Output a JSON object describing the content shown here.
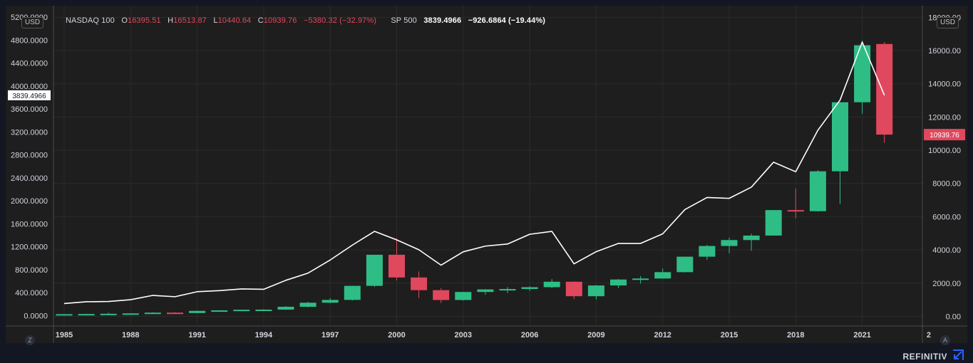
{
  "left_currency": "USD",
  "right_currency": "USD",
  "legend": {
    "symbol": "NASDAQ 100",
    "open_label": "O",
    "open": "16395.51",
    "high_label": "H",
    "high": "16513.87",
    "low_label": "L",
    "low": "10440.64",
    "close_label": "C",
    "close": "10939.76",
    "change": "−5380.32 (−32.97%)",
    "overlay_symbol": "SP 500",
    "overlay_value": "3839.4966",
    "overlay_change": "−926.6864 (−19.44%)"
  },
  "last_price_tag": "3839.4966",
  "close_price_tag": "10939.76",
  "corner_left": "Z",
  "corner_right": "A",
  "brand": "REFINITIV",
  "colors": {
    "up": "#2ebd85",
    "down": "#e0485d",
    "line": "#ffffff",
    "background": "#1e1e1e",
    "grid": "#2b2b2b",
    "text": "#d1d4dc"
  },
  "chart_data": {
    "type": "line",
    "title": "",
    "x_ticks": [
      "1985",
      "1988",
      "1991",
      "1994",
      "1997",
      "2000",
      "2003",
      "2006",
      "2009",
      "2012",
      "2015",
      "2018",
      "2021",
      "2"
    ],
    "left_axis": {
      "label": "SP 500",
      "ticks": [
        "0.0000",
        "400.0000",
        "800.0000",
        "1200.0000",
        "1600.0000",
        "2000.0000",
        "2400.0000",
        "2800.0000",
        "3200.0000",
        "3600.0000",
        "4000.0000",
        "4400.0000",
        "4800.0000",
        "5200.0000"
      ],
      "range": [
        -180,
        5400
      ]
    },
    "right_axis": {
      "label": "NASDAQ 100",
      "ticks": [
        "0.00",
        "2000.00",
        "4000.00",
        "6000.00",
        "8000.00",
        "10000.00",
        "12000.00",
        "14000.00",
        "16000.00",
        "18000.00"
      ],
      "range": [
        -580,
        18700
      ]
    },
    "grid": true,
    "series": [
      {
        "name": "NASDAQ 100",
        "type": "candlestick",
        "axis": "right",
        "candles": [
          {
            "year": 1985,
            "open": 100,
            "high": 140,
            "low": 90,
            "close": 132
          },
          {
            "year": 1986,
            "open": 132,
            "high": 160,
            "low": 120,
            "close": 141
          },
          {
            "year": 1987,
            "open": 141,
            "high": 220,
            "low": 100,
            "close": 156
          },
          {
            "year": 1988,
            "open": 156,
            "high": 190,
            "low": 140,
            "close": 177
          },
          {
            "year": 1989,
            "open": 177,
            "high": 240,
            "low": 170,
            "close": 223
          },
          {
            "year": 1990,
            "open": 223,
            "high": 250,
            "low": 170,
            "close": 200
          },
          {
            "year": 1991,
            "open": 200,
            "high": 340,
            "low": 190,
            "close": 330
          },
          {
            "year": 1992,
            "open": 330,
            "high": 370,
            "low": 300,
            "close": 361
          },
          {
            "year": 1993,
            "open": 361,
            "high": 400,
            "low": 340,
            "close": 398
          },
          {
            "year": 1994,
            "open": 398,
            "high": 430,
            "low": 360,
            "close": 404
          },
          {
            "year": 1995,
            "open": 404,
            "high": 620,
            "low": 390,
            "close": 576
          },
          {
            "year": 1996,
            "open": 576,
            "high": 870,
            "low": 540,
            "close": 821
          },
          {
            "year": 1997,
            "open": 821,
            "high": 1100,
            "low": 790,
            "close": 990
          },
          {
            "year": 1998,
            "open": 990,
            "high": 1850,
            "low": 950,
            "close": 1836
          },
          {
            "year": 1999,
            "open": 1836,
            "high": 3710,
            "low": 1770,
            "close": 3708
          },
          {
            "year": 2000,
            "open": 3708,
            "high": 4700,
            "low": 2170,
            "close": 2341
          },
          {
            "year": 2001,
            "open": 2341,
            "high": 2700,
            "low": 1100,
            "close": 1577
          },
          {
            "year": 2002,
            "open": 1577,
            "high": 1700,
            "low": 800,
            "close": 984
          },
          {
            "year": 2003,
            "open": 984,
            "high": 1480,
            "low": 950,
            "close": 1467
          },
          {
            "year": 2004,
            "open": 1467,
            "high": 1640,
            "low": 1300,
            "close": 1621
          },
          {
            "year": 2005,
            "open": 1621,
            "high": 1760,
            "low": 1400,
            "close": 1645
          },
          {
            "year": 2006,
            "open": 1645,
            "high": 1820,
            "low": 1530,
            "close": 1756
          },
          {
            "year": 2007,
            "open": 1756,
            "high": 2240,
            "low": 1700,
            "close": 2084
          },
          {
            "year": 2008,
            "open": 2084,
            "high": 2110,
            "low": 1040,
            "close": 1212
          },
          {
            "year": 2009,
            "open": 1212,
            "high": 1880,
            "low": 1020,
            "close": 1860
          },
          {
            "year": 2010,
            "open": 1860,
            "high": 2240,
            "low": 1700,
            "close": 2217
          },
          {
            "year": 2011,
            "open": 2217,
            "high": 2420,
            "low": 1970,
            "close": 2278
          },
          {
            "year": 2012,
            "open": 2278,
            "high": 2880,
            "low": 2260,
            "close": 2661
          },
          {
            "year": 2013,
            "open": 2661,
            "high": 3600,
            "low": 2640,
            "close": 3592
          },
          {
            "year": 2014,
            "open": 3592,
            "high": 4300,
            "low": 3400,
            "close": 4236
          },
          {
            "year": 2015,
            "open": 4236,
            "high": 4740,
            "low": 3790,
            "close": 4593
          },
          {
            "year": 2016,
            "open": 4593,
            "high": 4980,
            "low": 3950,
            "close": 4863
          },
          {
            "year": 2017,
            "open": 4863,
            "high": 6400,
            "low": 4860,
            "close": 6396
          },
          {
            "year": 2018,
            "open": 6396,
            "high": 7700,
            "low": 5900,
            "close": 6330
          },
          {
            "year": 2019,
            "open": 6330,
            "high": 8800,
            "low": 6300,
            "close": 8733
          },
          {
            "year": 2020,
            "open": 8733,
            "high": 12900,
            "low": 6770,
            "close": 12888
          },
          {
            "year": 2021,
            "open": 12888,
            "high": 16600,
            "low": 12200,
            "close": 16320
          },
          {
            "year": 2022,
            "open": 16395.51,
            "high": 16513.87,
            "low": 10440.64,
            "close": 10939.76
          }
        ]
      },
      {
        "name": "SP 500",
        "type": "line",
        "axis": "left",
        "x": [
          1985,
          1986,
          1987,
          1988,
          1989,
          1990,
          1991,
          1992,
          1993,
          1994,
          1995,
          1996,
          1997,
          1998,
          1999,
          2000,
          2001,
          2002,
          2003,
          2004,
          2005,
          2006,
          2007,
          2008,
          2009,
          2010,
          2011,
          2012,
          2013,
          2014,
          2015,
          2016,
          2017,
          2018,
          2019,
          2020,
          2021,
          2022
        ],
        "values": [
          211,
          242,
          247,
          278,
          353,
          330,
          417,
          436,
          466,
          459,
          616,
          741,
          970,
          1229,
          1469,
          1320,
          1148,
          880,
          1112,
          1212,
          1248,
          1418,
          1468,
          903,
          1115,
          1258,
          1258,
          1426,
          1848,
          2059,
          2044,
          2239,
          2674,
          2507,
          3231,
          3756,
          4766,
          3839.4966
        ]
      }
    ]
  }
}
